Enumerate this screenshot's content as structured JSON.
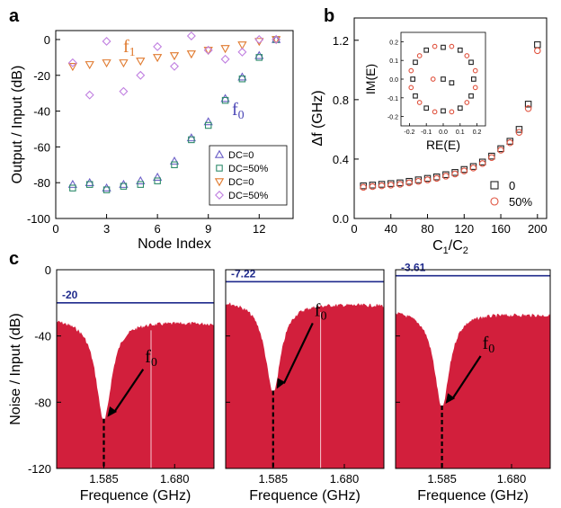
{
  "chart_data": [
    {
      "panel": "a",
      "type": "scatter",
      "xlabel": "Node Index",
      "ylabel": "Output / Input (dB)",
      "xlim": [
        0,
        14
      ],
      "ylim": [
        -100,
        5
      ],
      "xticks": [
        0,
        3,
        6,
        9,
        12
      ],
      "yticks": [
        0,
        -20,
        -40,
        -60,
        -80,
        -100
      ],
      "annotations": [
        {
          "text": "f",
          "sub": "1",
          "color": "#e07a2e"
        },
        {
          "text": "f",
          "sub": "0",
          "color": "#4a45b5"
        }
      ],
      "series": [
        {
          "name": "DC=0",
          "marker": "triangle-up",
          "color": "#6b5fc7",
          "x": [
            1,
            2,
            3,
            4,
            5,
            6,
            7,
            8,
            9,
            10,
            11,
            12,
            13
          ],
          "y": [
            -81,
            -80,
            -83,
            -81,
            -79,
            -77,
            -68,
            -55,
            -46,
            -33,
            -21,
            -9,
            0
          ]
        },
        {
          "name": "DC=50%",
          "marker": "square",
          "color": "#2e8b6b",
          "x": [
            1,
            2,
            3,
            4,
            5,
            6,
            7,
            8,
            9,
            10,
            11,
            12,
            13
          ],
          "y": [
            -83,
            -81,
            -84,
            -82,
            -81,
            -79,
            -70,
            -56,
            -48,
            -34,
            -22,
            -10,
            0
          ]
        },
        {
          "name": "DC=0",
          "marker": "triangle-down",
          "color": "#e07a2e",
          "x": [
            1,
            2,
            3,
            4,
            5,
            6,
            7,
            8,
            9,
            10,
            11,
            12,
            13
          ],
          "y": [
            -15,
            -14,
            -13,
            -13,
            -12,
            -10,
            -9,
            -8,
            -6,
            -5,
            -3,
            -1,
            0
          ]
        },
        {
          "name": "DC=50%",
          "marker": "diamond",
          "color": "#c07fe0",
          "x": [
            1,
            2,
            3,
            4,
            5,
            6,
            7,
            8,
            9,
            10,
            11,
            12,
            13
          ],
          "y": [
            -13,
            -31,
            -1,
            -29,
            -20,
            -4,
            -15,
            2,
            -6,
            -11,
            -7,
            0,
            0
          ]
        }
      ],
      "legend_position": "bottom-right"
    },
    {
      "panel": "b",
      "type": "scatter",
      "xlabel": "C1/C2",
      "ylabel": "Δf (GHz)",
      "xlim": [
        0,
        210
      ],
      "ylim": [
        0,
        1.35
      ],
      "xticks": [
        0,
        40,
        80,
        120,
        160,
        200
      ],
      "yticks": [
        0.0,
        0.4,
        0.8,
        1.2
      ],
      "series": [
        {
          "name": "0",
          "marker": "square",
          "color": "#222222",
          "x": [
            10,
            20,
            30,
            40,
            50,
            60,
            70,
            80,
            90,
            100,
            110,
            120,
            130,
            140,
            150,
            160,
            170,
            180,
            190,
            200
          ],
          "y": [
            0.22,
            0.225,
            0.23,
            0.235,
            0.24,
            0.25,
            0.26,
            0.27,
            0.28,
            0.295,
            0.31,
            0.33,
            0.35,
            0.38,
            0.42,
            0.47,
            0.52,
            0.6,
            0.77,
            1.17
          ]
        },
        {
          "name": "50%",
          "marker": "circle",
          "color": "#e0533f",
          "x": [
            10,
            20,
            30,
            40,
            50,
            60,
            70,
            80,
            90,
            100,
            110,
            120,
            130,
            140,
            150,
            160,
            170,
            180,
            190,
            200
          ],
          "y": [
            0.21,
            0.215,
            0.22,
            0.225,
            0.23,
            0.24,
            0.25,
            0.26,
            0.27,
            0.285,
            0.3,
            0.32,
            0.34,
            0.37,
            0.41,
            0.46,
            0.51,
            0.58,
            0.74,
            1.13
          ]
        }
      ],
      "legend_position": "bottom-right",
      "inset": {
        "xlabel": "RE(E)",
        "ylabel": "IM(E)",
        "xlim": [
          -0.25,
          0.25
        ],
        "ylim": [
          -0.25,
          0.25
        ],
        "xticks": [
          "-0.2",
          "-0.1",
          "0.0",
          "0.1",
          "0.2"
        ],
        "yticks": [
          "0.2",
          "0.1",
          "0.0",
          "-0.1",
          "-0.2"
        ],
        "series": [
          {
            "name": "0",
            "marker": "square",
            "color": "#222222",
            "x": [
              0.0,
              0.1,
              0.165,
              0.18,
              0.165,
              0.1,
              0.0,
              -0.1,
              -0.165,
              -0.18,
              -0.165,
              -0.1,
              0.0,
              0.05
            ],
            "y": [
              0.17,
              0.155,
              0.09,
              0.0,
              -0.09,
              -0.155,
              -0.17,
              -0.155,
              -0.09,
              0.0,
              0.09,
              0.155,
              0.0,
              -0.02
            ]
          },
          {
            "name": "50%",
            "marker": "circle",
            "color": "#e0533f",
            "x": [
              0.05,
              0.14,
              0.19,
              0.19,
              0.14,
              0.05,
              -0.05,
              -0.14,
              -0.19,
              -0.19,
              -0.14,
              -0.05,
              -0.06
            ],
            "y": [
              0.175,
              0.125,
              0.045,
              -0.045,
              -0.125,
              -0.175,
              -0.175,
              -0.125,
              -0.045,
              0.045,
              0.125,
              0.175,
              0.0
            ]
          }
        ]
      }
    },
    {
      "panel": "c",
      "type": "area",
      "ylabel": "Noise / Input (dB)",
      "ylim": [
        -120,
        0
      ],
      "yticks": [
        0,
        -40,
        -80,
        -120
      ],
      "fill_color": "#d21f3c",
      "subplots": [
        {
          "xlabel": "Frequence (GHz)",
          "xticks": [
            "1.585",
            "1.680"
          ],
          "hline": -20,
          "hline_label": "-20",
          "base_level": -29,
          "dip_level": -90,
          "annotation": {
            "text": "f",
            "sub": "0"
          }
        },
        {
          "xlabel": "Frequence (GHz)",
          "xticks": [
            "1.585",
            "1.680"
          ],
          "hline": -7.22,
          "hline_label": "-7.22",
          "base_level": -18,
          "dip_level": -73,
          "annotation": {
            "text": "f",
            "sub": "0"
          }
        },
        {
          "xlabel": "Frequence (GHz)",
          "xticks": [
            "1.585",
            "1.680"
          ],
          "hline": -3.61,
          "hline_label": "-3.61",
          "base_level": -24,
          "dip_level": -82,
          "annotation": {
            "text": "f",
            "sub": "0"
          }
        }
      ]
    }
  ],
  "panel_labels": [
    "a",
    "b",
    "c"
  ],
  "colors": {
    "hline": "#1f2a8c",
    "axis": "#000000"
  }
}
